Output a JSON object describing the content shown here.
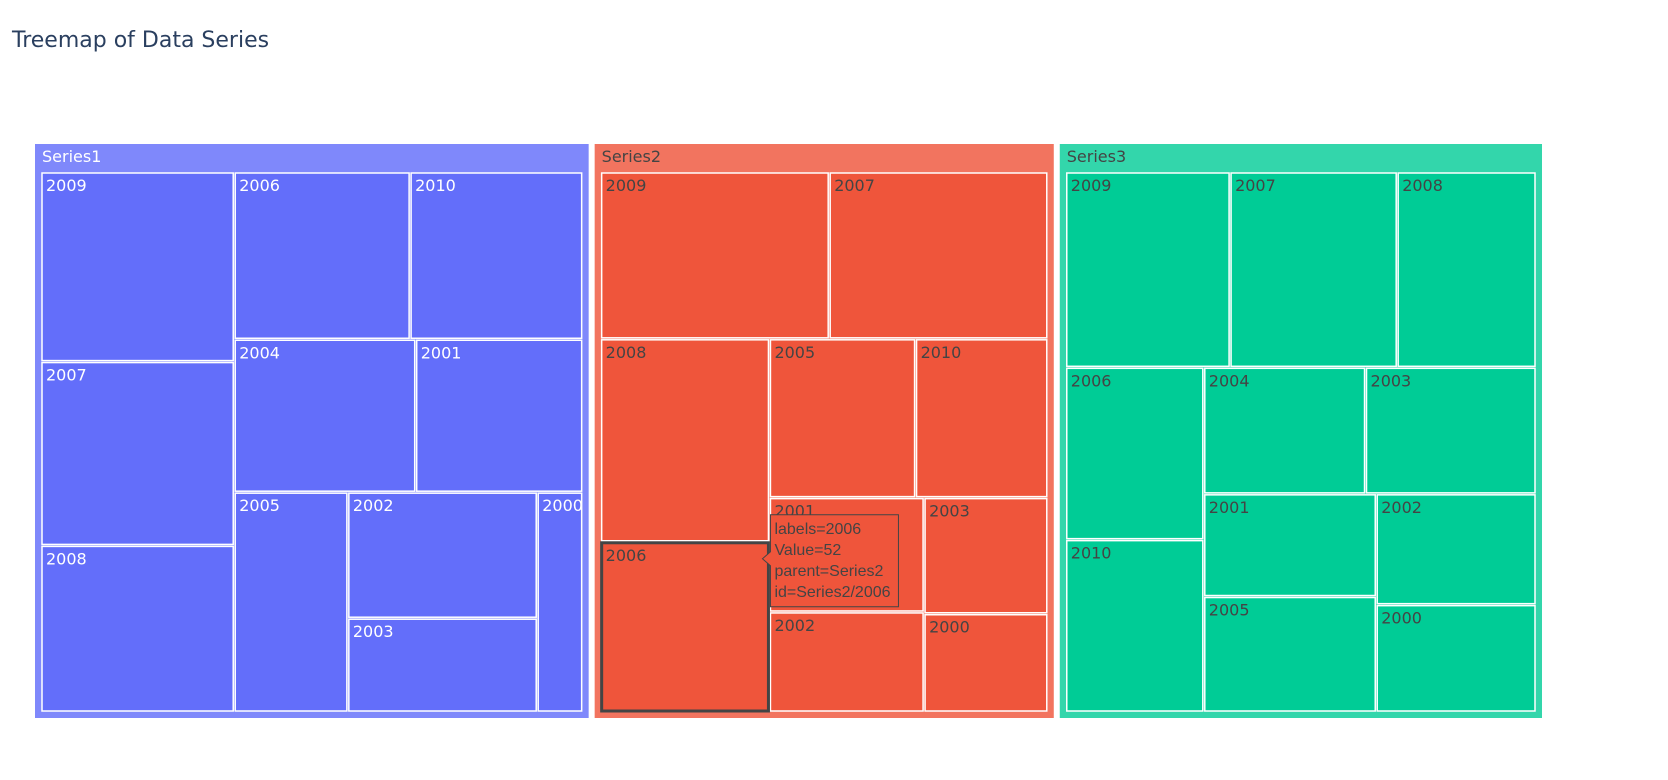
{
  "chart_data": {
    "type": "treemap",
    "title": "Treemap of Data Series",
    "series": [
      {
        "name": "Series1",
        "color": "#636efa",
        "header_color": "#7f88fb",
        "label_color": "#ffffff",
        "children": [
          {
            "label": "2009",
            "value": 66
          },
          {
            "label": "2007",
            "value": 64
          },
          {
            "label": "2008",
            "value": 58
          },
          {
            "label": "2006",
            "value": 53
          },
          {
            "label": "2010",
            "value": 52
          },
          {
            "label": "2004",
            "value": 50
          },
          {
            "label": "2001",
            "value": 46
          },
          {
            "label": "2005",
            "value": 45
          },
          {
            "label": "2002",
            "value": 43
          },
          {
            "label": "2003",
            "value": 32
          },
          {
            "label": "2000",
            "value": 18
          }
        ]
      },
      {
        "name": "Series2",
        "color": "#ef553b",
        "header_color": "#f2745f",
        "label_color": "#444444",
        "children": [
          {
            "label": "2009",
            "value": 69
          },
          {
            "label": "2007",
            "value": 66
          },
          {
            "label": "2008",
            "value": 62
          },
          {
            "label": "2006",
            "value": 52
          },
          {
            "label": "2005",
            "value": 42
          },
          {
            "label": "2010",
            "value": 38
          },
          {
            "label": "2001",
            "value": 32
          },
          {
            "label": "2002",
            "value": 28
          },
          {
            "label": "2003",
            "value": 26
          },
          {
            "label": "2000",
            "value": 22
          }
        ]
      },
      {
        "name": "Series3",
        "color": "#00cc96",
        "header_color": "#33d6ab",
        "label_color": "#444444",
        "children": [
          {
            "label": "2009",
            "value": 58
          },
          {
            "label": "2007",
            "value": 59
          },
          {
            "label": "2008",
            "value": 49
          },
          {
            "label": "2006",
            "value": 43
          },
          {
            "label": "2010",
            "value": 43
          },
          {
            "label": "2004",
            "value": 37
          },
          {
            "label": "2003",
            "value": 39
          },
          {
            "label": "2001",
            "value": 32
          },
          {
            "label": "2005",
            "value": 36
          },
          {
            "label": "2002",
            "value": 32
          },
          {
            "label": "2000",
            "value": 31
          }
        ]
      }
    ],
    "hover": {
      "series": "Series2",
      "label": "2006",
      "lines": [
        "labels=2006",
        "Value=52",
        "parent=Series2",
        "id=Series2/2006"
      ]
    }
  }
}
